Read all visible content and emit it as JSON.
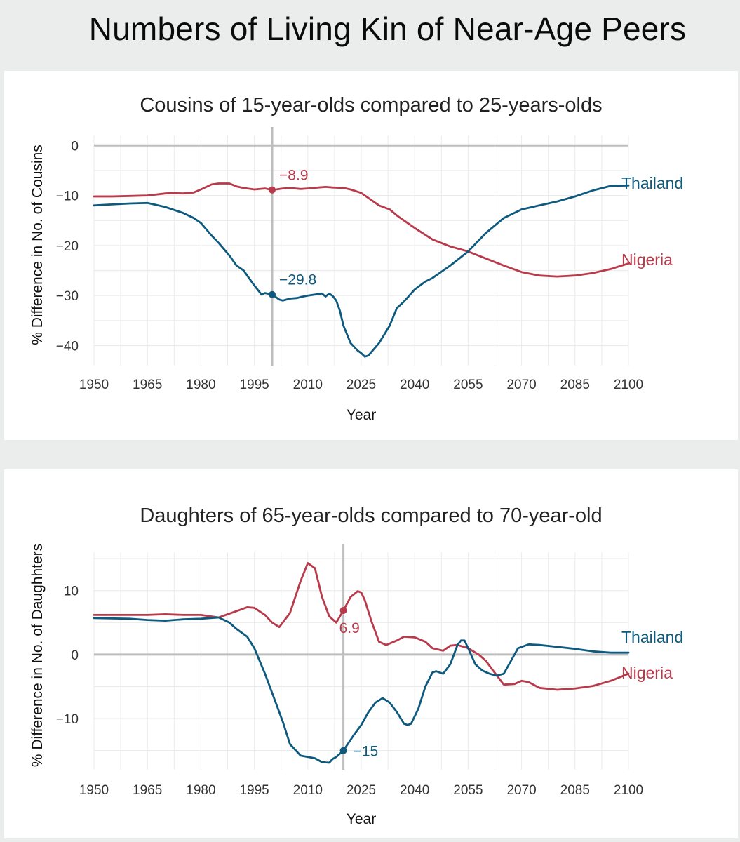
{
  "title": "Numbers of Living Kin of Near-Age Peers",
  "colors": {
    "thailand": "#0e5a7e",
    "nigeria": "#b83a4b",
    "refline": "#bdbdbd",
    "grid": "#ebebeb"
  },
  "chart_data": [
    {
      "type": "line",
      "title": "Cousins of 15-year-olds compared to 25-years-olds",
      "xlabel": "Year",
      "ylabel": "% Difference in No. of Cousins",
      "xlim": [
        1950,
        2100
      ],
      "ylim": [
        -44,
        2
      ],
      "xticks": [
        1950,
        1965,
        1980,
        1995,
        2010,
        2025,
        2040,
        2055,
        2070,
        2085,
        2100
      ],
      "xtick_labels": [
        "1950",
        "1965",
        "1980",
        "1995",
        "2010",
        "2025",
        "2040",
        "2055",
        "2070",
        "2085",
        "2100"
      ],
      "yticks": [
        0,
        -10,
        -20,
        -30,
        -40
      ],
      "ytick_labels": [
        "0",
        "−10",
        "−20",
        "−30",
        "−40"
      ],
      "highlight_year": 2000,
      "series": [
        {
          "name": "Nigeria",
          "key": "nigeria",
          "x": [
            1950,
            1955,
            1960,
            1965,
            1970,
            1972,
            1975,
            1978,
            1980,
            1983,
            1985,
            1988,
            1990,
            1992,
            1995,
            1998,
            2000,
            2003,
            2005,
            2008,
            2010,
            2013,
            2015,
            2017,
            2020,
            2022,
            2025,
            2028,
            2030,
            2033,
            2035,
            2038,
            2040,
            2045,
            2050,
            2055,
            2060,
            2065,
            2070,
            2075,
            2080,
            2085,
            2090,
            2095,
            2100
          ],
          "values": [
            -10.2,
            -10.2,
            -10.1,
            -10.0,
            -9.6,
            -9.5,
            -9.6,
            -9.4,
            -8.8,
            -7.8,
            -7.6,
            -7.6,
            -8.2,
            -8.5,
            -8.8,
            -8.6,
            -8.9,
            -8.6,
            -8.5,
            -8.7,
            -8.6,
            -8.4,
            -8.3,
            -8.4,
            -8.5,
            -8.8,
            -9.5,
            -11.0,
            -12.0,
            -12.8,
            -14.0,
            -15.5,
            -16.5,
            -18.8,
            -20.2,
            -21.2,
            -22.6,
            -24.0,
            -25.3,
            -26.0,
            -26.2,
            -26.0,
            -25.5,
            -24.7,
            -23.6
          ],
          "label": "Nigeria",
          "highlight_value": -8.9,
          "highlight_label": "−8.9"
        },
        {
          "name": "Thailand",
          "key": "thailand",
          "x": [
            1950,
            1955,
            1960,
            1965,
            1970,
            1975,
            1978,
            1980,
            1983,
            1985,
            1988,
            1990,
            1992,
            1993,
            1995,
            1997,
            1998,
            2000,
            2002,
            2003,
            2005,
            2007,
            2008,
            2010,
            2012,
            2014,
            2015,
            2016,
            2017,
            2018,
            2019,
            2020,
            2022,
            2024,
            2025,
            2026,
            2027,
            2030,
            2033,
            2035,
            2037,
            2040,
            2043,
            2045,
            2048,
            2050,
            2055,
            2060,
            2065,
            2070,
            2075,
            2080,
            2085,
            2090,
            2095,
            2100
          ],
          "values": [
            -12.0,
            -11.8,
            -11.6,
            -11.5,
            -12.3,
            -13.5,
            -14.5,
            -15.5,
            -18.0,
            -19.5,
            -22.0,
            -24.0,
            -25.0,
            -26.0,
            -28.0,
            -29.8,
            -29.5,
            -29.8,
            -30.8,
            -31.0,
            -30.6,
            -30.5,
            -30.3,
            -30.0,
            -29.8,
            -29.6,
            -30.2,
            -29.6,
            -30.1,
            -31.0,
            -33.0,
            -36.0,
            -39.5,
            -41.0,
            -41.5,
            -42.2,
            -42.0,
            -39.5,
            -36.0,
            -32.5,
            -31.2,
            -28.8,
            -27.2,
            -26.5,
            -25.0,
            -24.0,
            -21.2,
            -17.5,
            -14.5,
            -12.8,
            -12.0,
            -11.2,
            -10.2,
            -9.0,
            -8.1,
            -8.0
          ],
          "label": "Thailand",
          "highlight_value": -29.8,
          "highlight_label": "−29.8"
        }
      ]
    },
    {
      "type": "line",
      "title": "Daughters of 65-year-olds compared to 70-year-old",
      "xlabel": "Year",
      "ylabel": "% Difference in No. of Daughhters",
      "xlim": [
        1950,
        2100
      ],
      "ylim": [
        -18,
        16
      ],
      "xticks": [
        1950,
        1965,
        1980,
        1995,
        2010,
        2025,
        2040,
        2055,
        2070,
        2085,
        2100
      ],
      "xtick_labels": [
        "1950",
        "1965",
        "1980",
        "1995",
        "2010",
        "2025",
        "2040",
        "2055",
        "2070",
        "2085",
        "2100"
      ],
      "yticks": [
        10,
        0,
        -10
      ],
      "ytick_labels": [
        "10",
        "0",
        "−10"
      ],
      "highlight_year": 2020,
      "series": [
        {
          "name": "Nigeria",
          "key": "nigeria",
          "x": [
            1950,
            1960,
            1965,
            1970,
            1975,
            1980,
            1985,
            1990,
            1993,
            1995,
            1998,
            2000,
            2002,
            2005,
            2008,
            2010,
            2012,
            2014,
            2016,
            2018,
            2020,
            2022,
            2024,
            2025,
            2026,
            2028,
            2030,
            2032,
            2035,
            2037,
            2040,
            2043,
            2045,
            2048,
            2050,
            2052,
            2055,
            2058,
            2060,
            2062,
            2065,
            2068,
            2070,
            2072,
            2075,
            2080,
            2085,
            2090,
            2095,
            2100
          ],
          "values": [
            6.2,
            6.2,
            6.2,
            6.3,
            6.2,
            6.2,
            5.8,
            6.8,
            7.4,
            7.3,
            6.2,
            5.0,
            4.3,
            6.5,
            11.5,
            14.3,
            13.5,
            9.0,
            6.0,
            5.0,
            6.9,
            9.0,
            9.9,
            9.7,
            8.5,
            5.0,
            2.0,
            1.5,
            2.2,
            2.8,
            2.7,
            2.0,
            1.0,
            0.6,
            1.4,
            1.5,
            1.0,
            0.0,
            -1.0,
            -2.5,
            -4.7,
            -4.6,
            -4.1,
            -4.3,
            -5.2,
            -5.5,
            -5.3,
            -4.9,
            -4.1,
            -3.0
          ],
          "label": "Nigeria",
          "highlight_value": 6.9,
          "highlight_label": "6.9"
        },
        {
          "name": "Thailand",
          "key": "thailand",
          "x": [
            1950,
            1960,
            1965,
            1970,
            1975,
            1980,
            1985,
            1988,
            1990,
            1993,
            1995,
            1998,
            2000,
            2003,
            2005,
            2008,
            2010,
            2012,
            2014,
            2016,
            2017,
            2018,
            2020,
            2023,
            2025,
            2027,
            2029,
            2031,
            2033,
            2035,
            2037,
            2038,
            2039,
            2041,
            2043,
            2045,
            2046,
            2048,
            2050,
            2052,
            2053,
            2054,
            2055,
            2057,
            2059,
            2061,
            2063,
            2065,
            2067,
            2069,
            2072,
            2075,
            2080,
            2085,
            2090,
            2095,
            2100
          ],
          "values": [
            5.7,
            5.6,
            5.4,
            5.3,
            5.5,
            5.6,
            5.8,
            5.0,
            4.0,
            2.8,
            1.0,
            -3.0,
            -6.0,
            -10.5,
            -14.0,
            -15.8,
            -16.0,
            -16.2,
            -16.8,
            -16.9,
            -16.3,
            -16.0,
            -15.0,
            -12.5,
            -11.0,
            -9.0,
            -7.5,
            -6.8,
            -7.5,
            -9.0,
            -10.8,
            -11.0,
            -10.8,
            -8.5,
            -5.0,
            -2.8,
            -2.6,
            -3.0,
            -1.5,
            1.5,
            2.2,
            2.2,
            1.0,
            -1.5,
            -2.5,
            -3.0,
            -3.3,
            -3.0,
            -1.0,
            1.0,
            1.6,
            1.5,
            1.2,
            0.9,
            0.5,
            0.3,
            0.3
          ],
          "label": "Thailand",
          "highlight_value": -15,
          "highlight_label": "−15"
        }
      ]
    }
  ]
}
